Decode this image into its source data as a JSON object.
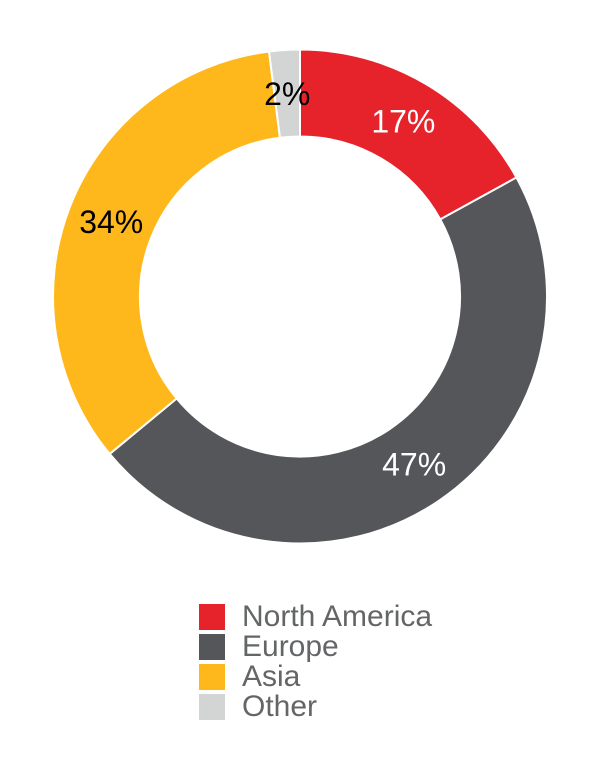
{
  "chart_data": {
    "type": "pie",
    "subtype": "donut",
    "title": "",
    "unit": "%",
    "start_angle_deg": 0,
    "direction": "clockwise",
    "donut_hole_ratio": 0.648,
    "separator_color": "#FFFFFF",
    "segments": [
      {
        "label": "North America",
        "value": 17,
        "display": "17%",
        "color": "#E6222B",
        "label_color": "#FFFFFF"
      },
      {
        "label": "Europe",
        "value": 47,
        "display": "47%",
        "color": "#55565A",
        "label_color": "#FFFFFF"
      },
      {
        "label": "Asia",
        "value": 34,
        "display": "34%",
        "color": "#FFB81C",
        "label_color": "#000000"
      },
      {
        "label": "Other",
        "value": 2,
        "display": "2%",
        "color": "#D3D4D4",
        "label_color": "#000000"
      }
    ],
    "legend": {
      "position": "bottom",
      "text_color": "#646567"
    }
  }
}
